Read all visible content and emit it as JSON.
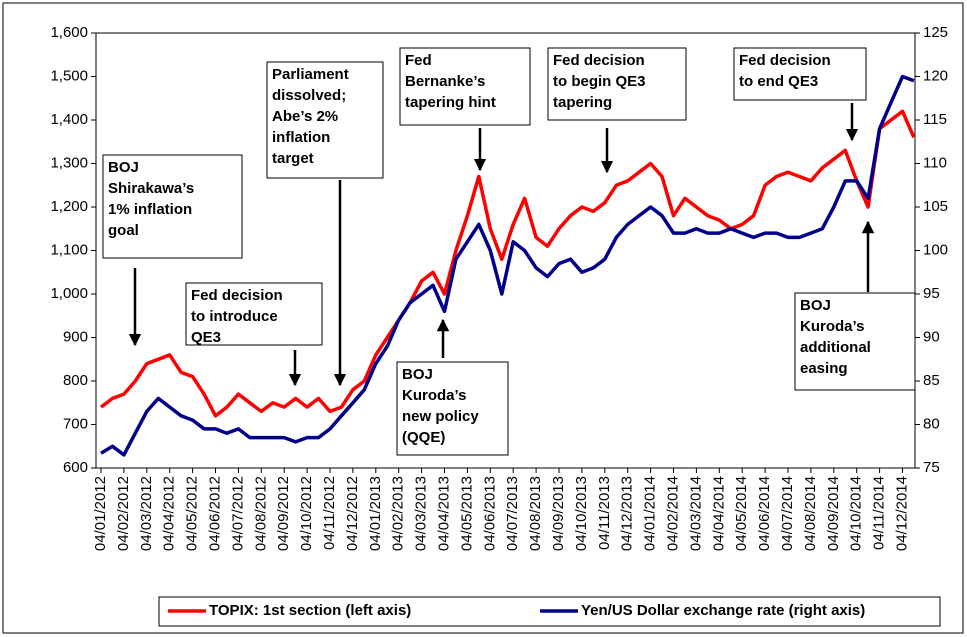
{
  "chart_data": {
    "type": "line",
    "categories": [
      "04/01/2012",
      null,
      "04/02/2012",
      null,
      "04/03/2012",
      null,
      "04/04/2012",
      null,
      "04/05/2012",
      null,
      "04/06/2012",
      null,
      "04/07/2012",
      null,
      "04/08/2012",
      null,
      "04/09/2012",
      null,
      "04/10/2012",
      null,
      "04/11/2012",
      null,
      "04/12/2012",
      null,
      "04/01/2013",
      null,
      "04/02/2013",
      null,
      "04/03/2013",
      null,
      "04/04/2013",
      null,
      "04/05/2013",
      null,
      "04/06/2013",
      null,
      "04/07/2013",
      null,
      "04/08/2013",
      null,
      "04/09/2013",
      null,
      "04/10/2013",
      null,
      "04/11/2013",
      null,
      "04/12/2013",
      null,
      "04/01/2014",
      null,
      "04/02/2014",
      null,
      "04/03/2014",
      null,
      "04/04/2014",
      null,
      "04/05/2014",
      null,
      "04/06/2014",
      null,
      "04/07/2014",
      null,
      "04/08/2014",
      null,
      "04/09/2014",
      null,
      "04/10/2014",
      null,
      "04/11/2014",
      null,
      "04/12/2014",
      null
    ],
    "series": [
      {
        "name": "TOPIX: 1st section (left axis)",
        "color": "#ff0000",
        "values": [
          740,
          760,
          770,
          800,
          840,
          850,
          860,
          820,
          810,
          770,
          720,
          740,
          770,
          750,
          730,
          750,
          740,
          760,
          740,
          760,
          730,
          740,
          780,
          800,
          860,
          900,
          940,
          980,
          1030,
          1050,
          1000,
          1100,
          1180,
          1270,
          1150,
          1080,
          1160,
          1220,
          1130,
          1110,
          1150,
          1180,
          1200,
          1190,
          1210,
          1250,
          1260,
          1280,
          1300,
          1270,
          1180,
          1220,
          1200,
          1180,
          1170,
          1150,
          1160,
          1180,
          1250,
          1270,
          1280,
          1270,
          1260,
          1290,
          1310,
          1330,
          1260,
          1200,
          1380,
          1400,
          1420,
          1360
        ]
      },
      {
        "name": "Yen/US Dollar exchange rate (right axis)",
        "color": "#00008b",
        "axis": "y2",
        "values": [
          76.7,
          77.5,
          76.5,
          79,
          81.5,
          83,
          82,
          81,
          80.5,
          79.5,
          79.5,
          79,
          79.5,
          78.5,
          78.5,
          78.5,
          78.5,
          78,
          78.5,
          78.5,
          79.5,
          81,
          82.5,
          84,
          87,
          89,
          92,
          94,
          95,
          96,
          93,
          99,
          101,
          103,
          100,
          95,
          101,
          100,
          98,
          97,
          98.5,
          99,
          97.5,
          98,
          99,
          101.5,
          103,
          104,
          105,
          104,
          102,
          102,
          102.5,
          102,
          102,
          102.5,
          102,
          101.5,
          102,
          102,
          101.5,
          101.5,
          102,
          102.5,
          105,
          108,
          108,
          106,
          114,
          117,
          120,
          119.5
        ]
      }
    ],
    "ylim": [
      600,
      1600
    ],
    "yticks": [
      600,
      700,
      800,
      900,
      {
        "value": 1000,
        "label": "1,000"
      },
      {
        "value": 1100,
        "label": "1,100"
      },
      {
        "value": 1200,
        "label": "1,200"
      },
      {
        "value": 1300,
        "label": "1,300"
      },
      {
        "value": 1400,
        "label": "1,400"
      },
      {
        "value": 1500,
        "label": "1,500"
      },
      {
        "value": 1600,
        "label": "1,600"
      }
    ],
    "y2lim": [
      75,
      125
    ],
    "y2ticks": [
      75,
      80,
      85,
      90,
      95,
      100,
      105,
      110,
      115,
      120,
      125
    ],
    "grid": false,
    "legend": "bottom",
    "annotations": [
      {
        "lines": [
          "BOJ",
          "Shirakawa’s",
          "1% inflation",
          "goal"
        ]
      },
      {
        "lines": [
          "Fed decision",
          "to introduce",
          "QE3"
        ]
      },
      {
        "lines": [
          "Parliament",
          "dissolved;",
          "Abe’s 2%",
          "inflation",
          "target"
        ]
      },
      {
        "lines": [
          "BOJ",
          "Kuroda’s",
          "new policy",
          "(QQE)"
        ]
      },
      {
        "lines": [
          "Fed",
          "Bernanke’s",
          "tapering hint"
        ]
      },
      {
        "lines": [
          "Fed decision",
          "to begin QE3",
          "tapering"
        ]
      },
      {
        "lines": [
          "Fed decision",
          "to end QE3"
        ]
      },
      {
        "lines": [
          "BOJ",
          "Kuroda’s",
          "additional",
          "easing"
        ]
      }
    ]
  }
}
